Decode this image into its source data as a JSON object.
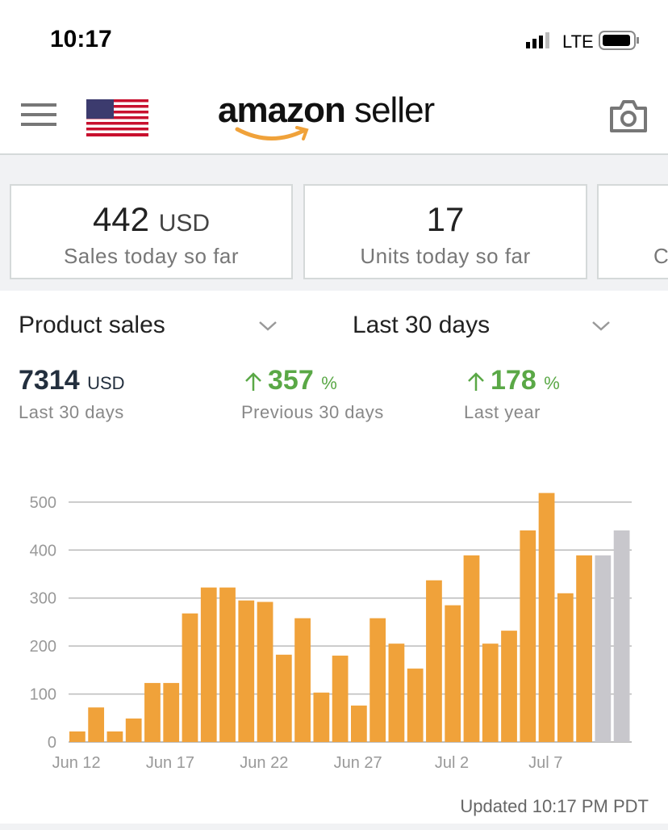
{
  "status_bar": {
    "time": "10:17",
    "network": "LTE"
  },
  "nav": {
    "logo_brand": "amazon",
    "logo_product": "seller"
  },
  "cards": [
    {
      "value": "442",
      "unit": "USD",
      "label": "Sales today so far"
    },
    {
      "value": "17",
      "label": "Units today so far"
    },
    {
      "label": "C"
    }
  ],
  "filters": {
    "metric": "Product sales",
    "period": "Last 30 days"
  },
  "summary": [
    {
      "value": "7314",
      "unit": "USD",
      "label": "Last 30 days"
    },
    {
      "value": "357",
      "unit": "%",
      "label": "Previous 30 days"
    },
    {
      "value": "178",
      "unit": "%",
      "label": "Last year"
    }
  ],
  "chart_data": {
    "type": "bar",
    "categories": [
      "Jun 12",
      null,
      null,
      null,
      null,
      "Jun 17",
      null,
      null,
      null,
      null,
      "Jun 22",
      null,
      null,
      null,
      null,
      "Jun 27",
      null,
      null,
      null,
      null,
      "Jul 2",
      null,
      null,
      null,
      null,
      "Jul 7",
      null,
      null,
      null,
      null
    ],
    "values": [
      22,
      72,
      22,
      49,
      123,
      123,
      268,
      322,
      322,
      295,
      292,
      182,
      258,
      103,
      180,
      76,
      258,
      205,
      153,
      337,
      285,
      389,
      205,
      232,
      441,
      519,
      310,
      389,
      389,
      441
    ],
    "colors": [
      "#f0a23a",
      "#f0a23a",
      "#f0a23a",
      "#f0a23a",
      "#f0a23a",
      "#f0a23a",
      "#f0a23a",
      "#f0a23a",
      "#f0a23a",
      "#f0a23a",
      "#f0a23a",
      "#f0a23a",
      "#f0a23a",
      "#f0a23a",
      "#f0a23a",
      "#f0a23a",
      "#f0a23a",
      "#f0a23a",
      "#f0a23a",
      "#f0a23a",
      "#f0a23a",
      "#f0a23a",
      "#f0a23a",
      "#f0a23a",
      "#f0a23a",
      "#f0a23a",
      "#f0a23a",
      "#f0a23a",
      "#c8c7cc",
      "#c8c7cc"
    ],
    "ylim": [
      0,
      520
    ],
    "yticks": [
      0,
      100,
      200,
      300,
      400,
      500
    ],
    "grid": true
  },
  "footer": {
    "updated": "Updated 10:17 PM PDT"
  }
}
